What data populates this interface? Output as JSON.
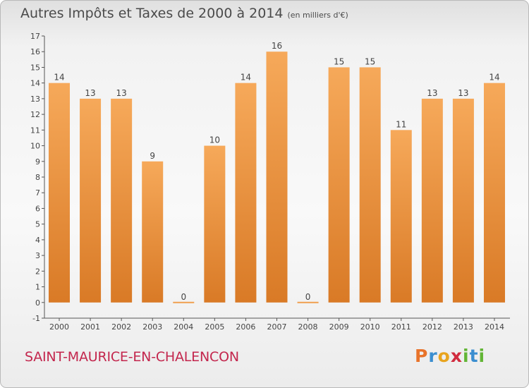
{
  "header": {
    "title": "Autres Impôts et Taxes de 2000 à 2014",
    "unit": "(en milliers d'€)"
  },
  "footer": {
    "commune": "SAINT-MAURICE-EN-CHALENCON",
    "logo_letters": [
      "P",
      "r",
      "o",
      "x",
      "i",
      "t",
      "i"
    ],
    "logo_colors": [
      "#e8732a",
      "#3b8ed0",
      "#e8a41e",
      "#d12b3e",
      "#62b535",
      "#3b8ed0",
      "#62b535"
    ]
  },
  "chart_data": {
    "type": "bar",
    "title": "Autres Impôts et Taxes de 2000 à 2014",
    "subtitle": "(en milliers d'€)",
    "categories": [
      "2000",
      "2001",
      "2002",
      "2003",
      "2004",
      "2005",
      "2006",
      "2007",
      "2008",
      "2009",
      "2010",
      "2011",
      "2012",
      "2013",
      "2014"
    ],
    "values": [
      14,
      13,
      13,
      9,
      0,
      10,
      14,
      16,
      0,
      15,
      15,
      11,
      13,
      13,
      14
    ],
    "data_labels": [
      "14",
      "13",
      "13",
      "9",
      "0",
      "10",
      "14",
      "16",
      "0",
      "15",
      "15",
      "11",
      "13",
      "13",
      "14"
    ],
    "y_ticks": [
      -1,
      0,
      1,
      2,
      3,
      4,
      5,
      6,
      7,
      8,
      9,
      10,
      11,
      12,
      13,
      14,
      15,
      16,
      17
    ],
    "ylim": [
      -1,
      17
    ],
    "grid": false,
    "colors": {
      "bar_top": "#f6a95a",
      "bar_bottom": "#d97a26",
      "zero_bar": "#f0a050",
      "axis": "#555555",
      "text": "#444444"
    }
  }
}
